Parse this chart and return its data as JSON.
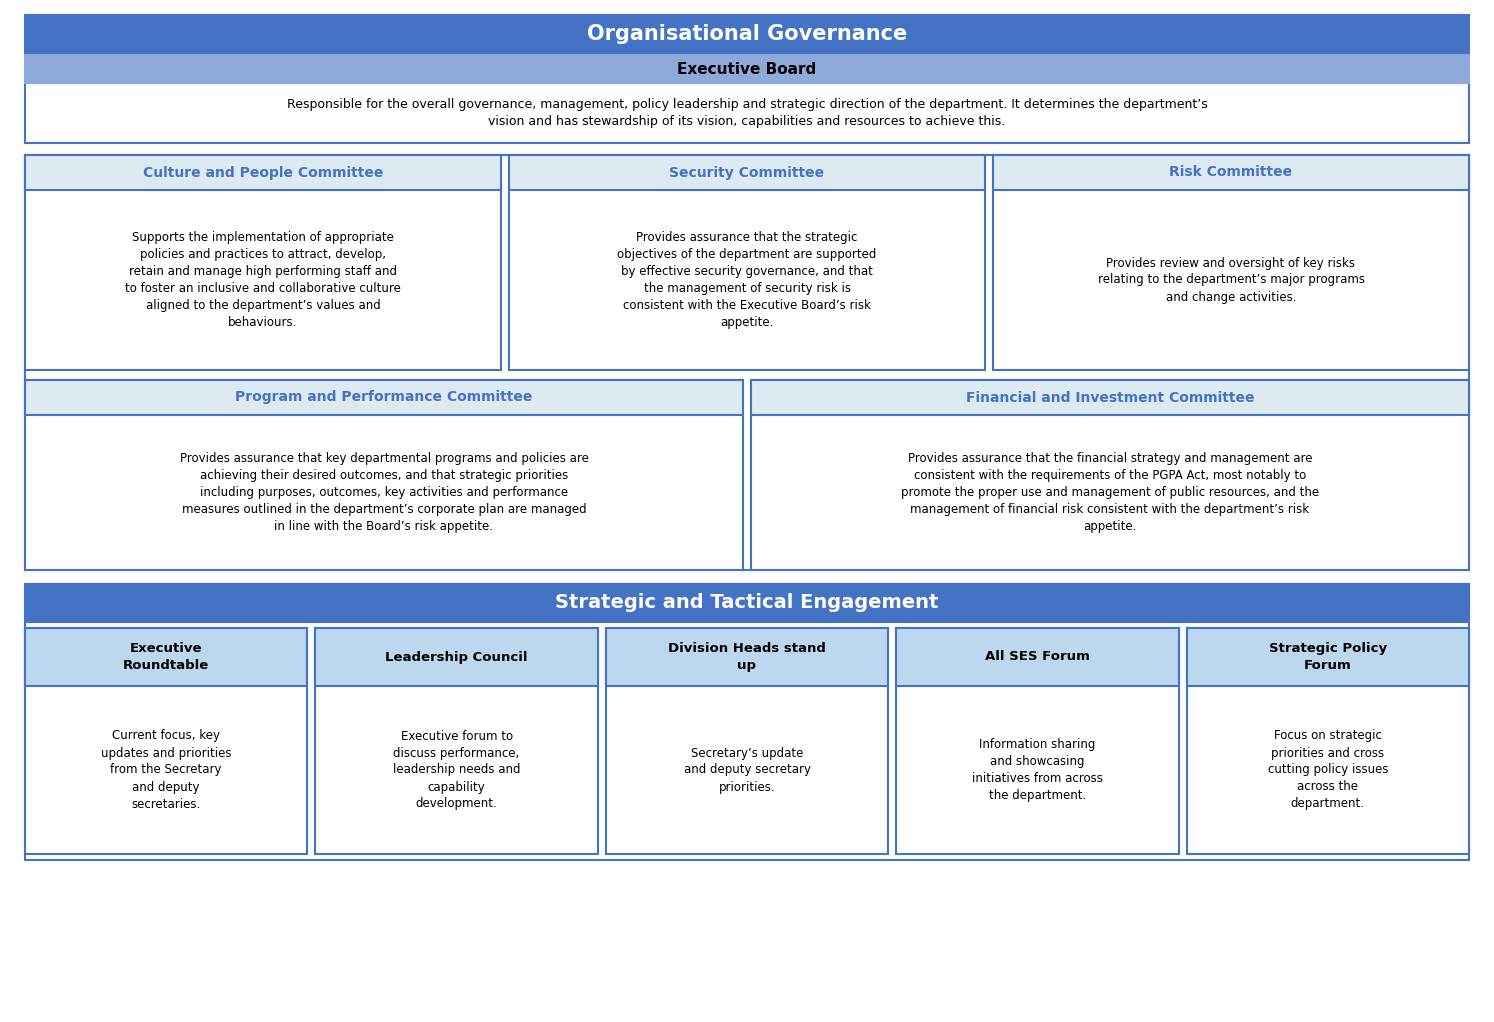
{
  "title_main": "Organisational Governance",
  "title_bg": "#4472C4",
  "title_fg": "#FFFFFF",
  "exec_board_title": "Executive Board",
  "exec_board_bg": "#8EAADB",
  "exec_board_fg": "#000000",
  "exec_board_text": "Responsible for the overall governance, management, policy leadership and strategic direction of the department. It determines the department’s\nvision and has stewardship of its vision, capabilities and resources to achieve this.",
  "box_border": "#4472C4",
  "box_bg": "#FFFFFF",
  "gov_committees_row1": [
    {
      "title": "Culture and People Committee",
      "title_color": "#4472C4",
      "text": "Supports the implementation of appropriate\npolicies and practices to attract, develop,\nretain and manage high performing staff and\nto foster an inclusive and collaborative culture\naligned to the department’s values and\nbehaviours."
    },
    {
      "title": "Security Committee",
      "title_color": "#4472C4",
      "text": "Provides assurance that the strategic\nobjectives of the department are supported\nby effective security governance, and that\nthe management of security risk is\nconsistent with the Executive Board’s risk\nappetite."
    },
    {
      "title": "Risk Committee",
      "title_color": "#4472C4",
      "text": "Provides review and oversight of key risks\nrelating to the department’s major programs\nand change activities."
    }
  ],
  "gov_committees_row2": [
    {
      "title": "Program and Performance Committee",
      "title_color": "#4472C4",
      "text": "Provides assurance that key departmental programs and policies are\nachieving their desired outcomes, and that strategic priorities\nincluding purposes, outcomes, key activities and performance\nmeasures outlined in the department’s corporate plan are managed\nin line with the Board’s risk appetite."
    },
    {
      "title": "Financial and Investment Committee",
      "title_color": "#4472C4",
      "text": "Provides assurance that the financial strategy and management are\nconsistent with the requirements of the PGPA Act, most notably to\npromote the proper use and management of public resources, and the\nmanagement of financial risk consistent with the department’s risk\nappetite."
    }
  ],
  "strategic_title": "Strategic and Tactical Engagement",
  "strategic_bg": "#4472C4",
  "strategic_fg": "#FFFFFF",
  "strategic_groups": [
    {
      "title": "Executive\nRoundtable",
      "text": "Current focus, key\nupdates and priorities\nfrom the Secretary\nand deputy\nsecretaries."
    },
    {
      "title": "Leadership Council",
      "text": "Executive forum to\ndiscuss performance,\nleadership needs and\ncapability\ndevelopment."
    },
    {
      "title": "Division Heads stand\nup",
      "text": "Secretary’s update\nand deputy secretary\npriorities."
    },
    {
      "title": "All SES Forum",
      "text": "Information sharing\nand showcasing\ninitiatives from across\nthe department."
    },
    {
      "title": "Strategic Policy\nForum",
      "text": "Focus on strategic\npriorities and cross\ncutting policy issues\nacross the\ndepartment."
    }
  ],
  "strategic_box_bg": "#BDD7EE",
  "bg_color": "#FFFFFF",
  "outer_border": "#4472C4"
}
